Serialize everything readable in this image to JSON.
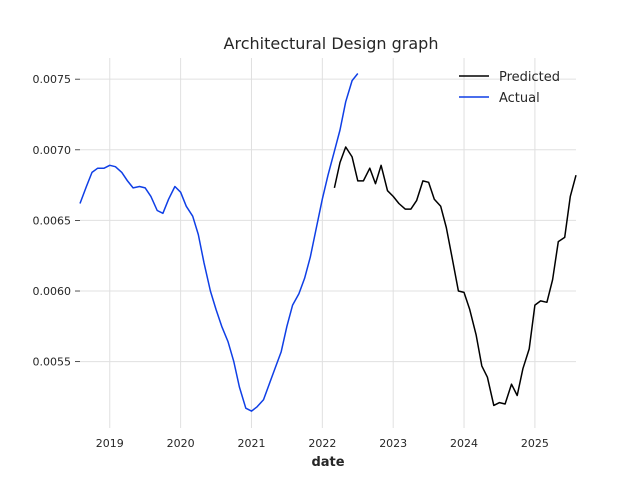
{
  "chart_data": {
    "type": "line",
    "title": "Architectural Design graph",
    "xlabel": "date",
    "ylabel": "",
    "xlim": [
      2018.58,
      2025.58
    ],
    "ylim": [
      0.00503,
      0.00765
    ],
    "x_ticks": [
      2019,
      2020,
      2021,
      2022,
      2023,
      2024,
      2025
    ],
    "x_tick_labels": [
      "2019",
      "2020",
      "2021",
      "2022",
      "2023",
      "2024",
      "2025"
    ],
    "y_ticks": [
      0.0055,
      0.006,
      0.0065,
      0.007,
      0.0075
    ],
    "y_tick_labels": [
      "0.0055",
      "0.0060",
      "0.0065",
      "0.0070",
      "0.0075"
    ],
    "grid": true,
    "legend_position": "top-right",
    "series": [
      {
        "name": "Predicted",
        "color": "#000000",
        "x": [
          2022.17,
          2022.25,
          2022.33,
          2022.42,
          2022.5,
          2022.58,
          2022.67,
          2022.75,
          2022.83,
          2022.92,
          2023.0,
          2023.08,
          2023.17,
          2023.25,
          2023.33,
          2023.42,
          2023.5,
          2023.58,
          2023.67,
          2023.75,
          2023.83,
          2023.92,
          2024.0,
          2024.08,
          2024.17,
          2024.25,
          2024.33,
          2024.42,
          2024.5,
          2024.58,
          2024.67,
          2024.75,
          2024.83,
          2024.92,
          2025.0,
          2025.08,
          2025.17,
          2025.25,
          2025.33,
          2025.42,
          2025.5,
          2025.58
        ],
        "y": [
          0.00673,
          0.00691,
          0.00702,
          0.00695,
          0.00678,
          0.00678,
          0.00687,
          0.00676,
          0.00689,
          0.00671,
          0.00667,
          0.00662,
          0.00658,
          0.00658,
          0.00664,
          0.00678,
          0.00677,
          0.00665,
          0.0066,
          0.00645,
          0.00624,
          0.006,
          0.00599,
          0.00587,
          0.00569,
          0.00547,
          0.00539,
          0.00519,
          0.00521,
          0.0052,
          0.00534,
          0.00526,
          0.00545,
          0.00559,
          0.0059,
          0.00593,
          0.00592,
          0.00608,
          0.00635,
          0.00638,
          0.00667,
          0.00682
        ]
      },
      {
        "name": "Actual",
        "color": "#0f3fe6",
        "x": [
          2018.58,
          2018.67,
          2018.75,
          2018.83,
          2018.92,
          2019.0,
          2019.08,
          2019.17,
          2019.25,
          2019.33,
          2019.42,
          2019.5,
          2019.58,
          2019.67,
          2019.75,
          2019.83,
          2019.92,
          2020.0,
          2020.08,
          2020.17,
          2020.25,
          2020.33,
          2020.42,
          2020.5,
          2020.58,
          2020.67,
          2020.75,
          2020.83,
          2020.92,
          2021.0,
          2021.08,
          2021.17,
          2021.25,
          2021.33,
          2021.42,
          2021.5,
          2021.58,
          2021.67,
          2021.75,
          2021.83,
          2021.92,
          2022.0,
          2022.08,
          2022.17,
          2022.25,
          2022.33,
          2022.42,
          2022.5
        ],
        "y": [
          0.00662,
          0.00674,
          0.00684,
          0.00687,
          0.00687,
          0.00689,
          0.00688,
          0.00684,
          0.00678,
          0.00673,
          0.00674,
          0.00673,
          0.00667,
          0.00657,
          0.00655,
          0.00665,
          0.00674,
          0.0067,
          0.0066,
          0.00653,
          0.0064,
          0.0062,
          0.006,
          0.00587,
          0.00575,
          0.00564,
          0.0055,
          0.00532,
          0.00517,
          0.00515,
          0.00518,
          0.00523,
          0.00534,
          0.00545,
          0.00557,
          0.00575,
          0.0059,
          0.00598,
          0.00609,
          0.00624,
          0.00646,
          0.00665,
          0.00682,
          0.00699,
          0.00714,
          0.00734,
          0.00749,
          0.00754
        ]
      }
    ]
  }
}
